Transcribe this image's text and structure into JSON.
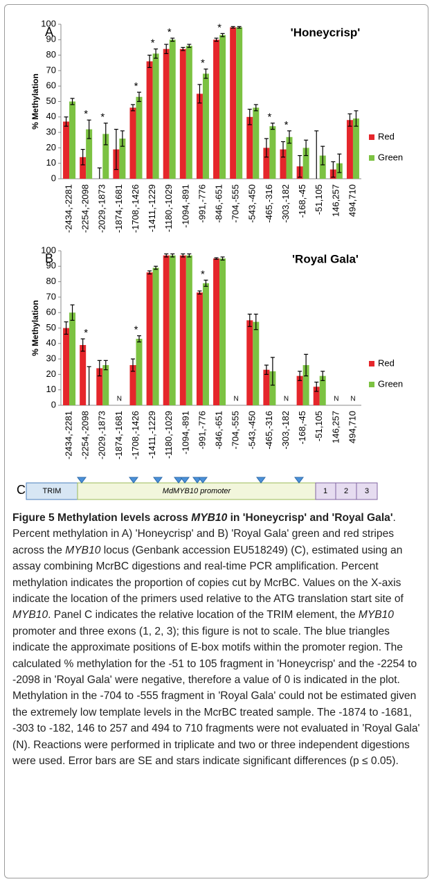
{
  "chart_data": [
    {
      "type": "bar",
      "panel": "A",
      "title": "'Honeycrisp'",
      "ylabel": "% Methylation",
      "categories": [
        "-2434,-2281",
        "-2254,-2098",
        "-2029,-1873",
        "-1874,-1681",
        "-1708,-1426",
        "-1411,-1229",
        "-1180,-1029",
        "-1094,-891",
        "-991,-776",
        "-846,-651",
        "-704,-555",
        "-543,-450",
        "-465,-316",
        "-303,-182",
        "-168,-45",
        "-51,105",
        "146,257",
        "494,710"
      ],
      "series": [
        {
          "name": "Red",
          "color": "#e5262b",
          "values": [
            37,
            14,
            0,
            19,
            46,
            76,
            84,
            84,
            55,
            90,
            98,
            40,
            20,
            19,
            8,
            0,
            6,
            38
          ],
          "errors": [
            3,
            5,
            7,
            13,
            2,
            4,
            3,
            1,
            6,
            1,
            0.5,
            5,
            6,
            5,
            7,
            31,
            5,
            4
          ]
        },
        {
          "name": "Green",
          "color": "#7cc242",
          "values": [
            50,
            32,
            29,
            26,
            53,
            81,
            90,
            86,
            68,
            93,
            98,
            46,
            34,
            27,
            20,
            15,
            10,
            39
          ],
          "errors": [
            2,
            6,
            7,
            5,
            3,
            3,
            1,
            1,
            3,
            1,
            0.5,
            2,
            2,
            4,
            5,
            6,
            6,
            5
          ]
        }
      ],
      "significance": [
        null,
        "*",
        "*",
        null,
        "*",
        "*",
        "*",
        null,
        "*",
        "*",
        null,
        null,
        "*",
        "*",
        null,
        null,
        null,
        null
      ],
      "ylim": [
        0,
        100
      ],
      "yticks": [
        0,
        10,
        20,
        30,
        40,
        50,
        60,
        70,
        80,
        90,
        100
      ],
      "grid": false,
      "legend": "right"
    },
    {
      "type": "bar",
      "panel": "B",
      "title": "'Royal Gala'",
      "ylabel": "% Methylation",
      "categories": [
        "-2434,-2281",
        "-2254,-2098",
        "-2029,-1873",
        "-1874,-1681",
        "-1708,-1426",
        "-1411,-1229",
        "-1180,-1029",
        "-1094,-891",
        "-991,-776",
        "-846,-651",
        "-704,-555",
        "-543,-450",
        "-465,-316",
        "-303,-182",
        "-168,-45",
        "-51,105",
        "146,257",
        "494,710"
      ],
      "series": [
        {
          "name": "Red",
          "color": "#e5262b",
          "values": [
            50,
            39,
            24,
            null,
            26,
            86,
            97,
            97,
            73,
            95,
            null,
            55,
            23,
            null,
            19,
            12,
            null,
            null
          ],
          "errors": [
            4,
            4,
            5,
            null,
            4,
            1,
            1,
            1,
            1,
            0.5,
            null,
            4,
            3,
            null,
            3,
            3,
            null,
            null
          ]
        },
        {
          "name": "Green",
          "color": "#7cc242",
          "values": [
            60,
            0,
            26,
            null,
            43,
            89,
            97,
            97,
            79,
            95,
            null,
            54,
            22,
            null,
            26,
            19,
            null,
            null
          ],
          "errors": [
            5,
            25,
            3,
            null,
            2,
            1,
            1,
            1,
            2,
            1,
            null,
            5,
            9,
            null,
            7,
            3,
            null,
            null
          ]
        }
      ],
      "significance": [
        null,
        "*",
        null,
        null,
        "*",
        null,
        null,
        null,
        "*",
        null,
        null,
        null,
        null,
        null,
        null,
        null,
        null,
        null
      ],
      "category_notes": [
        null,
        null,
        null,
        "N",
        null,
        null,
        null,
        null,
        null,
        null,
        "N",
        null,
        null,
        "N",
        null,
        null,
        "N",
        "N"
      ],
      "ylim": [
        0,
        100
      ],
      "yticks": [
        0,
        10,
        20,
        30,
        40,
        50,
        60,
        70,
        80,
        90,
        100
      ],
      "grid": false,
      "legend": "right"
    }
  ],
  "diagram": {
    "panel": "C",
    "boxes": [
      "TRIM",
      "MdMYB10 promoter",
      "1",
      "2",
      "3"
    ]
  },
  "caption": {
    "runs": [
      {
        "text": "Figure 5 Methylation levels across ",
        "bold": true
      },
      {
        "text": "MYB10",
        "bold": true,
        "italic": true
      },
      {
        "text": " in 'Honeycrisp' and 'Royal Gala'",
        "bold": true
      },
      {
        "text": ". Percent methylation in A) 'Honeycrisp' and B) 'Royal Gala' green and red stripes across the "
      },
      {
        "text": "MYB10",
        "italic": true
      },
      {
        "text": " locus (Genbank accession EU518249) (C), estimated using an assay combining McrBC digestions and real-time PCR amplification. Percent methylation indicates the proportion of copies cut by McrBC. Values on the X-axis indicate the location of the primers used relative to the ATG translation start site of "
      },
      {
        "text": "MYB10",
        "italic": true
      },
      {
        "text": ". Panel C indicates the relative location of the TRIM element, the "
      },
      {
        "text": "MYB10",
        "italic": true
      },
      {
        "text": " promoter and three exons (1, 2, 3); this figure is not to scale. The blue triangles indicate the approximate positions of E-box motifs within the promoter region. The calculated % methylation for the -51 to 105 fragment in 'Honeycrisp' and the -2254 to -2098 in 'Royal Gala' were negative, therefore a value of 0 is indicated in the plot. Methylation in the -704 to -555 fragment in 'Royal Gala' could not be estimated given the extremely low template levels in the McrBC treated sample. The -1874 to -1681, -303 to -182, 146 to 257 and 494 to 710 fragments were not evaluated in 'Royal Gala' (N). Reactions were performed in triplicate and two or three independent digestions were used. Error bars are SE and stars indicate significant differences (p ≤ 0.05)."
      }
    ]
  }
}
